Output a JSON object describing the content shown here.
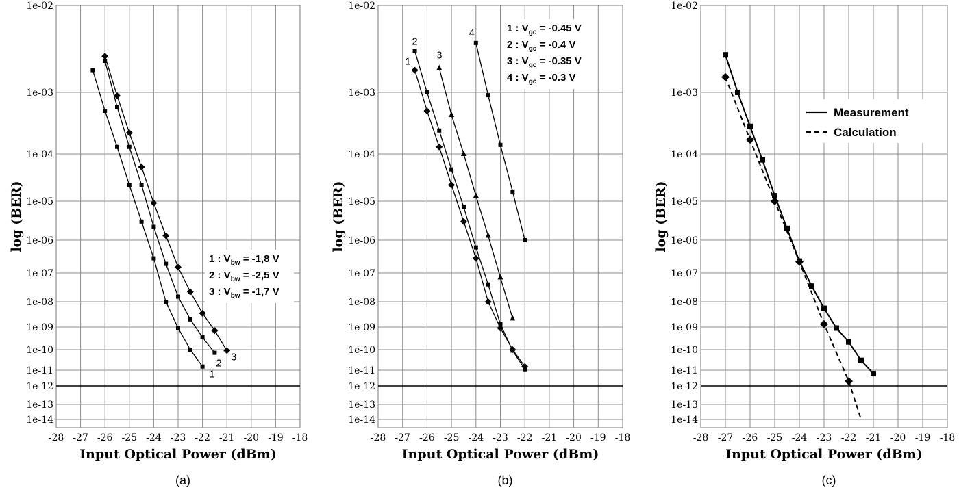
{
  "chart_data": [
    {
      "type": "line",
      "panel_label": "(a)",
      "xlabel": "Input Optical Power (dBm)",
      "ylabel": "log (BER)",
      "xlim": [
        -28,
        -18
      ],
      "x_ticks": [
        -28,
        -27,
        -26,
        -25,
        -24,
        -23,
        -22,
        -21,
        -20,
        -19,
        -18
      ],
      "y_tick_labels": [
        "1e-02",
        "1e-03",
        "1e-04",
        "1e-05",
        "1e-06",
        "1e-07",
        "1e-08",
        "1e-09",
        "1e-10",
        "1e-11",
        "1e-12",
        "1e-13",
        "1e-14"
      ],
      "threshold_line": "1e-12",
      "grid": true,
      "legend": {
        "position": "right-middle",
        "entries": [
          {
            "prefix": "1 : V",
            "sub": "bw",
            "value": " = -1,8 V"
          },
          {
            "prefix": "2 : V",
            "sub": "bw",
            "value": " = -2,5 V"
          },
          {
            "prefix": "3 : V",
            "sub": "bw",
            "value": " = -1,7 V"
          }
        ]
      },
      "series": [
        {
          "label": "1",
          "marker": "square",
          "line": "solid",
          "x": [
            -26.5,
            -26,
            -25.5,
            -25,
            -24.5,
            -24,
            -23.5,
            -23,
            -22.5,
            -22
          ],
          "y": [
            0.0018,
            0.0005,
            0.00013,
            2.2e-05,
            3e-06,
            2.8e-07,
            1e-08,
            9e-10,
            1e-10,
            1.5e-11
          ]
        },
        {
          "label": "2",
          "marker": "square",
          "line": "solid",
          "x": [
            -26,
            -25.5,
            -25,
            -24.5,
            -24,
            -23.5,
            -23,
            -22.5,
            -22,
            -21.5
          ],
          "y": [
            0.0023,
            0.00058,
            0.00013,
            2.2e-05,
            2.2e-06,
            1.9e-07,
            1.5e-08,
            2e-09,
            3.5e-10,
            7e-11
          ]
        },
        {
          "label": "3",
          "marker": "diamond",
          "line": "solid",
          "x": [
            -26,
            -25.5,
            -25,
            -24.5,
            -24,
            -23.5,
            -23,
            -22.5,
            -22,
            -21.5,
            -21
          ],
          "y": [
            0.0026,
            0.00088,
            0.00022,
            5.3e-05,
            9e-06,
            1.3e-06,
            1.5e-07,
            2.2e-08,
            3.5e-09,
            7e-10,
            9e-11
          ]
        }
      ]
    },
    {
      "type": "line",
      "panel_label": "(b)",
      "xlabel": "Input Optical Power (dBm)",
      "ylabel": "log (BER)",
      "xlim": [
        -28,
        -18
      ],
      "x_ticks": [
        -28,
        -27,
        -26,
        -25,
        -24,
        -23,
        -22,
        -21,
        -20,
        -19,
        -18
      ],
      "y_tick_labels": [
        "1e-02",
        "1e-03",
        "1e-04",
        "1e-05",
        "1e-06",
        "1e-07",
        "1e-08",
        "1e-09",
        "1e-10",
        "1e-11",
        "1e-12",
        "1e-13",
        "1e-14"
      ],
      "threshold_line": "1e-12",
      "grid": true,
      "legend": {
        "position": "top-right",
        "entries": [
          {
            "prefix": "1 : V",
            "sub": "gc",
            "value": " = -0.45 V"
          },
          {
            "prefix": "2 : V",
            "sub": "gc",
            "value": " = -0.4 V"
          },
          {
            "prefix": "3 : V",
            "sub": "gc",
            "value": " = -0.35 V"
          },
          {
            "prefix": "4 : V",
            "sub": "gc",
            "value": " = -0.3 V"
          }
        ]
      },
      "series": [
        {
          "label": "1",
          "marker": "diamond",
          "line": "solid",
          "x": [
            -26.5,
            -26,
            -25.5,
            -25,
            -24.5,
            -24,
            -23.5,
            -23,
            -22.5,
            -22
          ],
          "y": [
            0.0018,
            0.0005,
            0.00013,
            2.2e-05,
            3e-06,
            2.8e-07,
            1e-08,
            9e-10,
            1e-10,
            1.5e-11
          ]
        },
        {
          "label": "2",
          "marker": "square",
          "line": "solid",
          "x": [
            -26.5,
            -26,
            -25.5,
            -25,
            -24.5,
            -24,
            -23.5,
            -23,
            -22.5,
            -22
          ],
          "y": [
            0.003,
            0.001,
            0.00024,
            4.7e-05,
            7e-06,
            6e-07,
            4e-08,
            1.3e-09,
            9e-11,
            1.1e-11
          ]
        },
        {
          "label": "3",
          "marker": "triangle",
          "line": "solid",
          "x": [
            -25.5,
            -25,
            -24.5,
            -24,
            -23.5,
            -23,
            -22.5
          ],
          "y": [
            0.0019,
            0.00043,
            0.0001,
            1.3e-05,
            1.3e-06,
            7e-08,
            2.2e-09
          ]
        },
        {
          "label": "4",
          "marker": "square",
          "line": "solid",
          "x": [
            -24,
            -23.5,
            -23,
            -22.5,
            -22
          ],
          "y": [
            0.0037,
            0.0009,
            0.00014,
            1.6e-05,
            1e-06
          ]
        }
      ]
    },
    {
      "type": "line",
      "panel_label": "(c)",
      "xlabel": "Input Optical Power (dBm)",
      "ylabel": "log (BER)",
      "xlim": [
        -28,
        -18
      ],
      "x_ticks": [
        -28,
        -27,
        -26,
        -25,
        -24,
        -23,
        -22,
        -21,
        -20,
        -19,
        -18
      ],
      "y_tick_labels": [
        "1e-02",
        "1e-03",
        "1e-04",
        "1e-05",
        "1e-06",
        "1e-07",
        "1e-08",
        "1e-09",
        "1e-10",
        "1e-11",
        "1e-12",
        "1e-13",
        "1e-14"
      ],
      "threshold_line": "1e-12",
      "grid": true,
      "legend": {
        "position": "top-right",
        "entries": [
          {
            "text": "Measurement",
            "line": "solid"
          },
          {
            "text": "Calculation",
            "line": "dashed"
          }
        ]
      },
      "series": [
        {
          "name": "Measurement",
          "marker": "square",
          "line": "solid",
          "x": [
            -27,
            -26.5,
            -26,
            -25.5,
            -25,
            -24.5,
            -24,
            -23.5,
            -23,
            -22.5,
            -22,
            -21.5,
            -21
          ],
          "y": [
            0.0027,
            0.001,
            0.00028,
            7.5e-05,
            1.3e-05,
            2e-06,
            2.3e-07,
            3.5e-08,
            5.5e-09,
            9e-10,
            2.2e-10,
            3e-11,
            6e-12
          ]
        },
        {
          "name": "Calculation",
          "marker": "diamond",
          "line": "dashed",
          "x": [
            -27,
            -26,
            -25,
            -24,
            -23,
            -22
          ],
          "y": [
            0.0015,
            0.00017,
            1e-05,
            2.2e-07,
            1.3e-09,
            2e-12
          ],
          "dashed_extension_to": [
            -21.5,
            1e-14
          ]
        }
      ]
    }
  ]
}
